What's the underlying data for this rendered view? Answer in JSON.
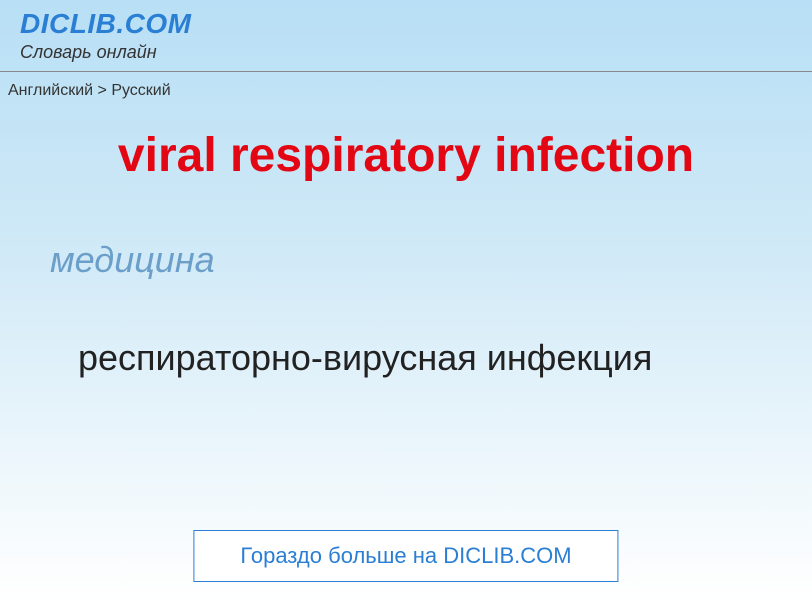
{
  "header": {
    "site_title": "DICLIB.COM",
    "site_subtitle": "Словарь онлайн"
  },
  "breadcrumb": {
    "text": "Английский > Русский"
  },
  "entry": {
    "title": "viral respiratory infection",
    "category": "медицина",
    "translation": "респираторно-вирусная инфекция"
  },
  "footer": {
    "link_text": "Гораздо больше на DICLIB.COM"
  },
  "colors": {
    "title_color": "#e30613",
    "brand_color": "#2a7fd4",
    "category_color": "#6b9fc9",
    "bg_top": "#b8dff5",
    "bg_bottom": "#ffffff"
  }
}
